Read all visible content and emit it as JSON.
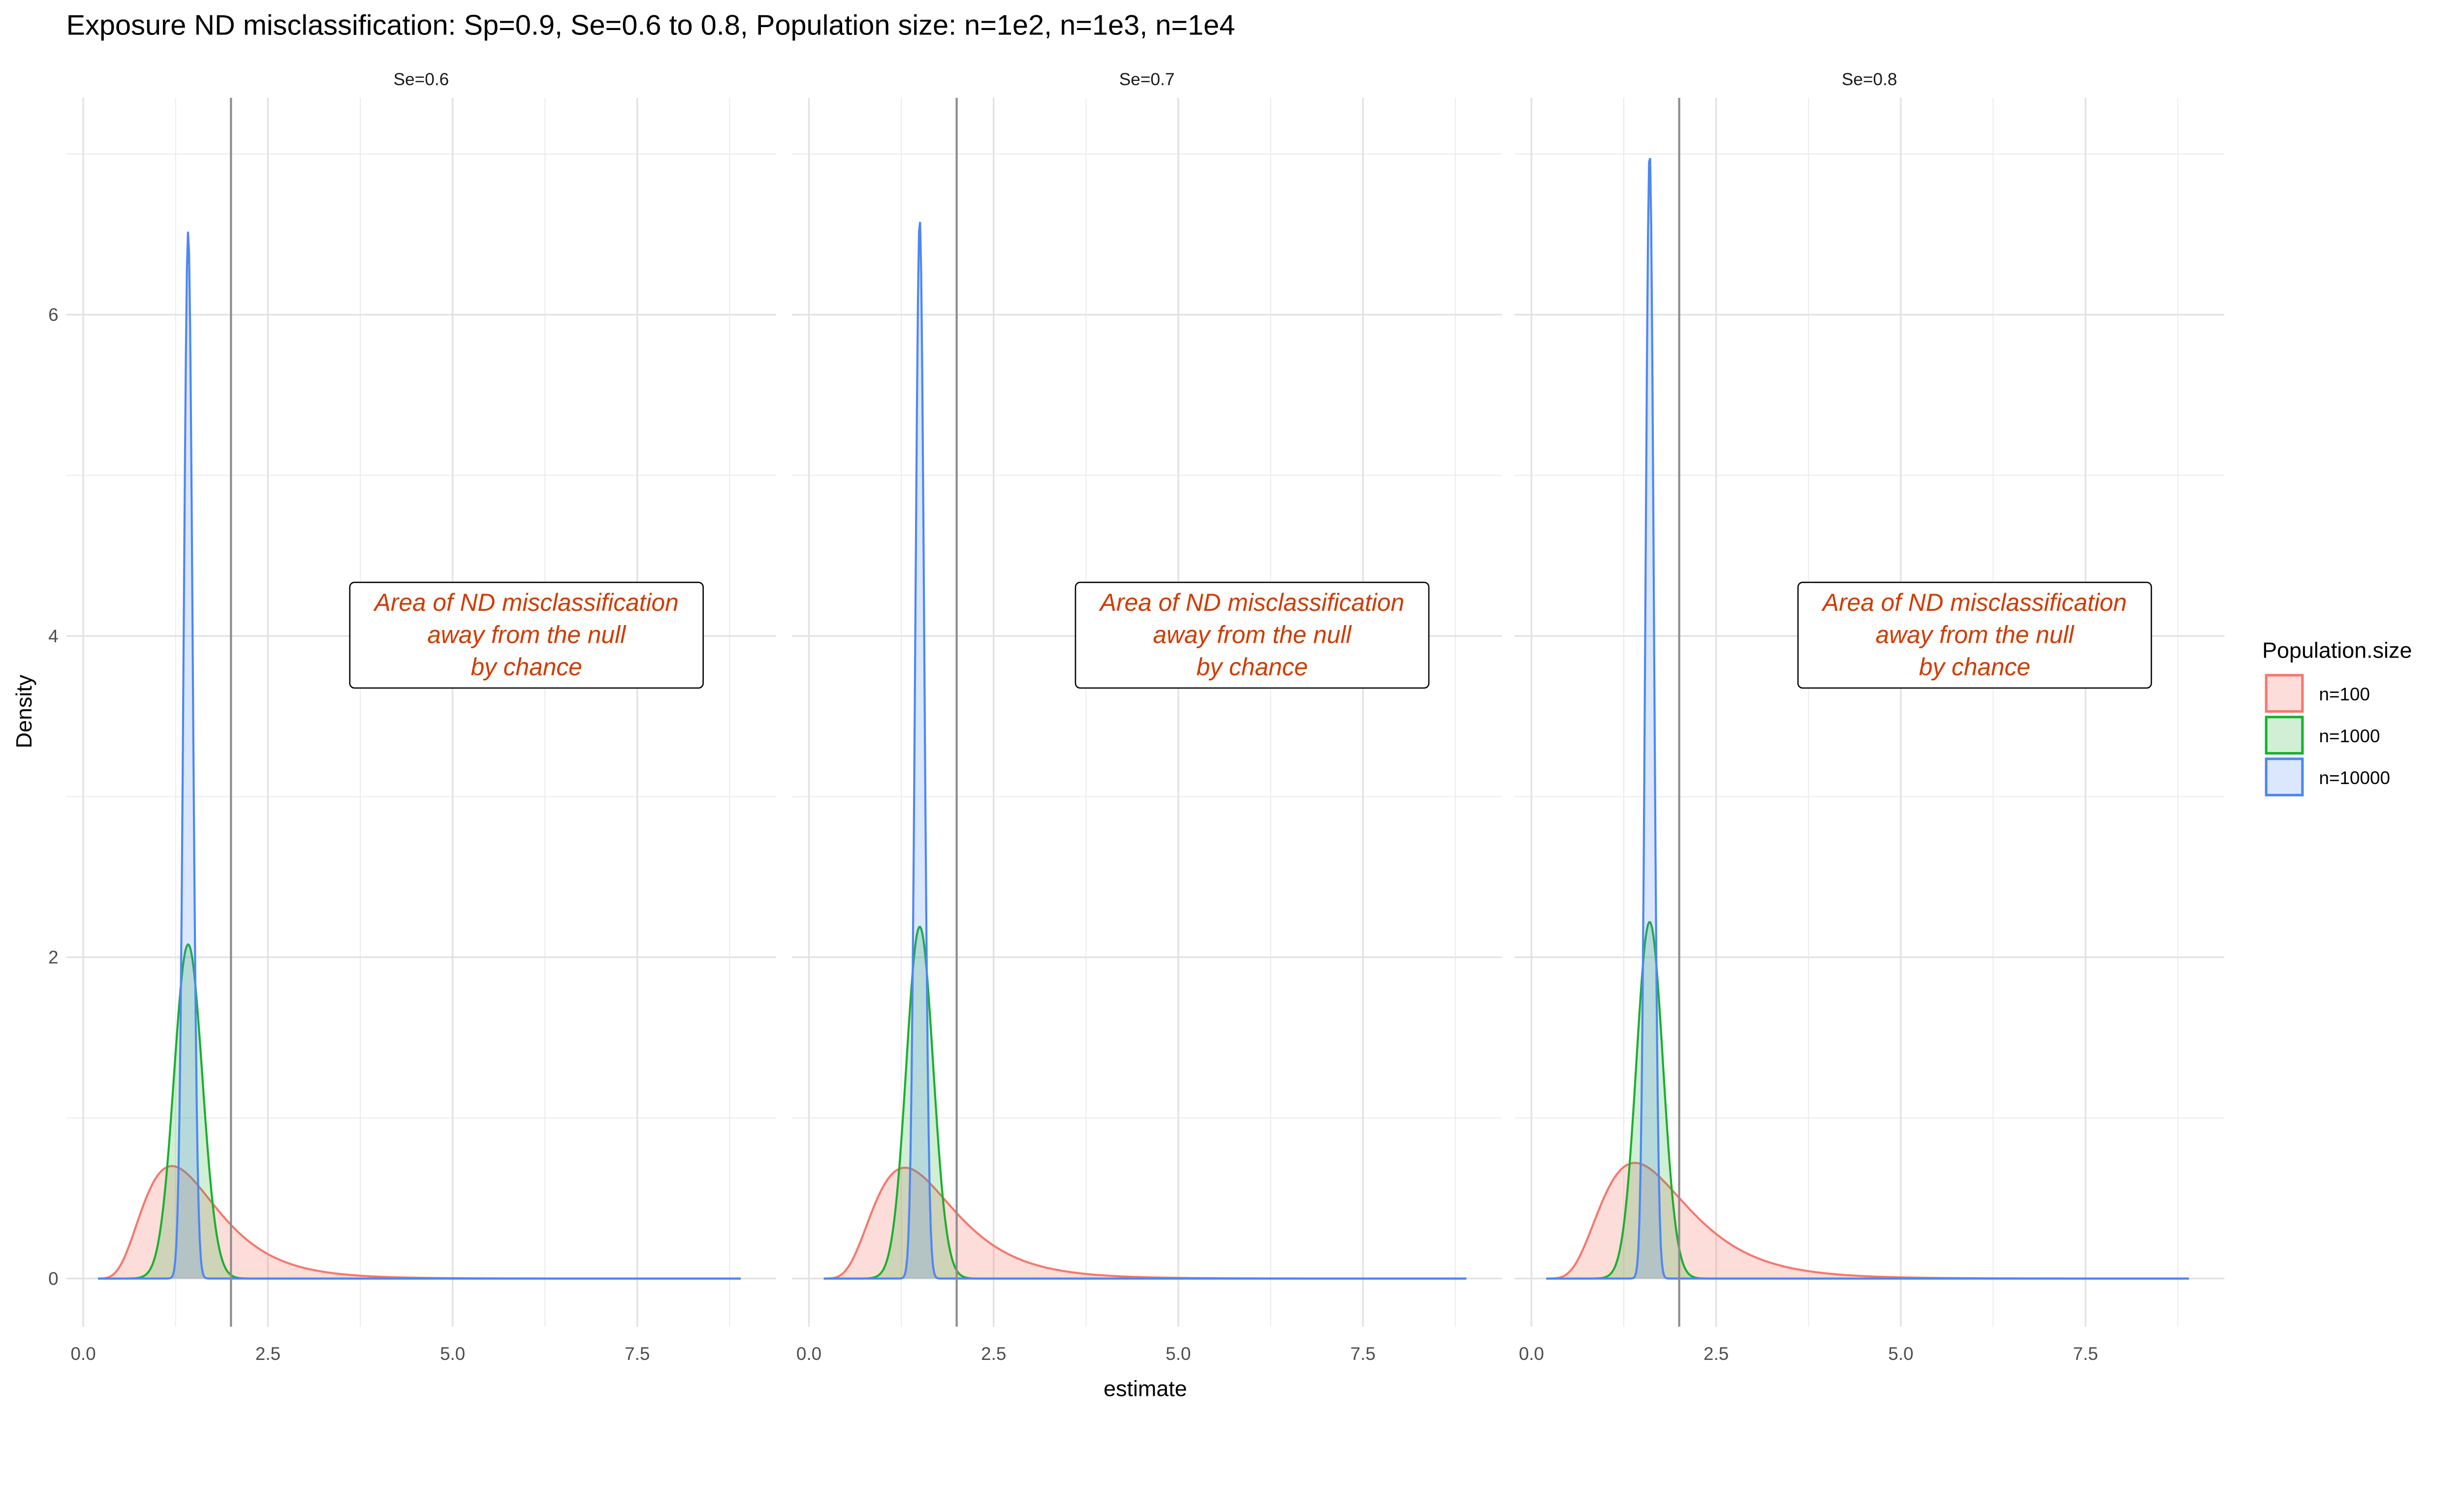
{
  "chart_data": {
    "type": "area",
    "title": "Exposure ND misclassification: Sp=0.9, Se=0.6 to 0.8, Population size: n=1e2, n=1e3, n=1e4",
    "xlabel": "estimate",
    "ylabel": "Density",
    "xlim": [
      -0.23,
      9.38
    ],
    "ylim": [
      -0.3,
      7.35
    ],
    "x_ticks": [
      0,
      2.5,
      5,
      7.5
    ],
    "x_tick_labels": [
      "0.0",
      "2.5",
      "5.0",
      "7.5"
    ],
    "y_ticks": [
      0,
      2,
      4,
      6
    ],
    "y_tick_labels": [
      "0",
      "2",
      "4",
      "6"
    ],
    "grid": true,
    "reference_line_x": 2,
    "legend": {
      "title": "Population.size",
      "placement": "right",
      "entries": [
        {
          "label": "n=100",
          "color": "#F8766D"
        },
        {
          "label": "n=1000",
          "color": "#18B02E"
        },
        {
          "label": "n=10000",
          "color": "#4D86F7"
        }
      ]
    },
    "annotation": {
      "lines": [
        "Area of ND misclassification",
        "away from the null",
        "by chance"
      ],
      "x": 6.0,
      "y": 4.0,
      "color": "#D13B00"
    },
    "x_range_of_estimates": [
      0.2,
      8.9
    ],
    "panels": [
      {
        "strip": "Se=0.6",
        "series": [
          {
            "name": "n=100",
            "shape": "right-skewed",
            "mode": 1.2,
            "peak_density": 0.7
          },
          {
            "name": "n=1000",
            "shape": "normal",
            "mode": 1.42,
            "peak_density": 2.08
          },
          {
            "name": "n=10000",
            "shape": "normal",
            "mode": 1.42,
            "peak_density": 6.52
          }
        ]
      },
      {
        "strip": "Se=0.7",
        "series": [
          {
            "name": "n=100",
            "shape": "right-skewed",
            "mode": 1.3,
            "peak_density": 0.69
          },
          {
            "name": "n=1000",
            "shape": "normal",
            "mode": 1.5,
            "peak_density": 2.19
          },
          {
            "name": "n=10000",
            "shape": "normal",
            "mode": 1.5,
            "peak_density": 6.6
          }
        ]
      },
      {
        "strip": "Se=0.8",
        "series": [
          {
            "name": "n=100",
            "shape": "right-skewed",
            "mode": 1.4,
            "peak_density": 0.72
          },
          {
            "name": "n=1000",
            "shape": "normal",
            "mode": 1.6,
            "peak_density": 2.22
          },
          {
            "name": "n=10000",
            "shape": "normal",
            "mode": 1.6,
            "peak_density": 7.02
          }
        ]
      }
    ]
  }
}
